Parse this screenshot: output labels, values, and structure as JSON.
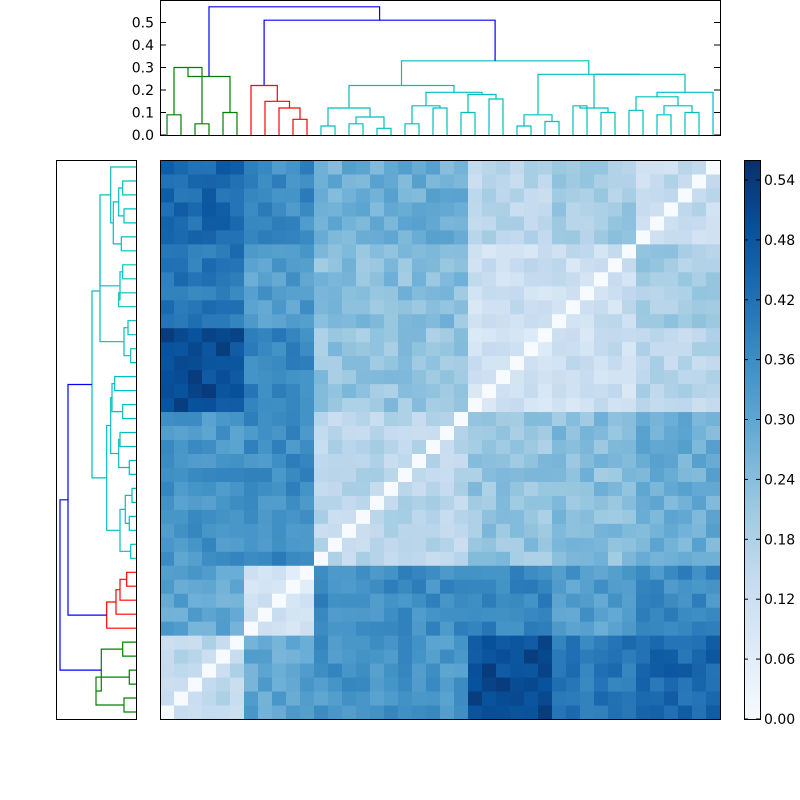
{
  "colors": {
    "cluster_root": "#0000ff",
    "cluster_a": "#008000",
    "cluster_b": "#ff0000",
    "cluster_c": "#00bfbf",
    "cmap_low": "#f7fbff",
    "cmap_high": "#08306b"
  },
  "chart_data": [
    {
      "type": "dendrogram",
      "orientation": "top",
      "ylim": [
        0,
        0.6
      ],
      "yticks": [
        "0.0",
        "0.1",
        "0.2",
        "0.3",
        "0.4",
        "0.5"
      ],
      "leaf_count": 40,
      "grid": false,
      "clusters": [
        {
          "name": "",
          "color": "#008000",
          "leaves": [
            0,
            1,
            2,
            3,
            4,
            5
          ]
        },
        {
          "name": "",
          "color": "#ff0000",
          "leaves": [
            6,
            7,
            8,
            9,
            10
          ]
        },
        {
          "name": "",
          "color": "#00bfbf",
          "leaves": [
            11,
            39
          ]
        }
      ],
      "merges": [
        {
          "left": 0,
          "right": 1,
          "height": 0.09,
          "color": "#008000"
        },
        {
          "left": 2,
          "right": 3,
          "height": 0.05,
          "color": "#008000"
        },
        {
          "left": 4,
          "right": 5,
          "height": 0.1,
          "color": "#008000"
        },
        {
          "left": 40,
          "right": 41,
          "height": 0.3,
          "color": "#008000"
        },
        {
          "left": 42,
          "right": 43,
          "height": 0.26,
          "color": "#008000"
        },
        {
          "left": 9,
          "right": 10,
          "height": 0.07,
          "color": "#ff0000"
        },
        {
          "left": 8,
          "right": 45,
          "height": 0.12,
          "color": "#ff0000"
        },
        {
          "left": 7,
          "right": 46,
          "height": 0.15,
          "color": "#ff0000"
        },
        {
          "left": 6,
          "right": 47,
          "height": 0.22,
          "color": "#ff0000"
        },
        {
          "left": 11,
          "right": 12,
          "height": 0.04,
          "color": "#00bfbf"
        },
        {
          "left": 13,
          "right": 14,
          "height": 0.05,
          "color": "#00bfbf"
        },
        {
          "left": 15,
          "right": 16,
          "height": 0.03,
          "color": "#00bfbf"
        },
        {
          "left": 50,
          "right": 51,
          "height": 0.08,
          "color": "#00bfbf"
        },
        {
          "left": 49,
          "right": 52,
          "height": 0.12,
          "color": "#00bfbf"
        },
        {
          "left": 17,
          "right": 18,
          "height": 0.05,
          "color": "#00bfbf"
        },
        {
          "left": 19,
          "right": 20,
          "height": 0.12,
          "color": "#00bfbf"
        },
        {
          "left": 54,
          "right": 55,
          "height": 0.13,
          "color": "#00bfbf"
        },
        {
          "left": 21,
          "right": 22,
          "height": 0.1,
          "color": "#00bfbf"
        },
        {
          "left": 23,
          "right": 24,
          "height": 0.16,
          "color": "#00bfbf"
        },
        {
          "left": 57,
          "right": 58,
          "height": 0.18,
          "color": "#00bfbf"
        },
        {
          "left": 56,
          "right": 59,
          "height": 0.19,
          "color": "#00bfbf"
        },
        {
          "left": 53,
          "right": 60,
          "height": 0.22,
          "color": "#00bfbf"
        },
        {
          "left": 25,
          "right": 26,
          "height": 0.04,
          "color": "#00bfbf"
        },
        {
          "left": 27,
          "right": 28,
          "height": 0.06,
          "color": "#00bfbf"
        },
        {
          "left": 62,
          "right": 63,
          "height": 0.09,
          "color": "#00bfbf"
        },
        {
          "left": 29,
          "right": 30,
          "height": 0.13,
          "color": "#00bfbf"
        },
        {
          "left": 31,
          "right": 32,
          "height": 0.1,
          "color": "#00bfbf"
        },
        {
          "left": 65,
          "right": 66,
          "height": 0.12,
          "color": "#00bfbf"
        },
        {
          "left": 33,
          "right": 34,
          "height": 0.11,
          "color": "#00bfbf"
        },
        {
          "left": 35,
          "right": 36,
          "height": 0.09,
          "color": "#00bfbf"
        },
        {
          "left": 37,
          "right": 38,
          "height": 0.1,
          "color": "#00bfbf"
        },
        {
          "left": 69,
          "right": 70,
          "height": 0.13,
          "color": "#00bfbf"
        },
        {
          "left": 68,
          "right": 71,
          "height": 0.17,
          "color": "#00bfbf"
        },
        {
          "left": 72,
          "right": 39,
          "height": 0.19,
          "color": "#00bfbf"
        },
        {
          "left": 67,
          "right": 73,
          "height": 0.27,
          "color": "#00bfbf"
        },
        {
          "left": 64,
          "right": 74,
          "height": 0.27,
          "color": "#00bfbf"
        },
        {
          "left": 61,
          "right": 75,
          "height": 0.33,
          "color": "#00bfbf"
        },
        {
          "left": 48,
          "right": 76,
          "height": 0.51,
          "color": "#0000ff"
        },
        {
          "left": 44,
          "right": 77,
          "height": 0.57,
          "color": "#0000ff"
        }
      ]
    },
    {
      "type": "dendrogram",
      "orientation": "left",
      "leaf_count": 40,
      "note_same_tree": "row dendrogram mirrors the column tree; root at bottom-left",
      "xticks": [],
      "yticks": []
    },
    {
      "type": "heatmap",
      "rows": 40,
      "cols": 40,
      "diagonal_value": 0.0,
      "zlim": [
        0.0,
        0.56
      ],
      "colormap": "Blues",
      "colorbar_ticks": [
        "0.00",
        "0.06",
        "0.12",
        "0.18",
        "0.24",
        "0.30",
        "0.36",
        "0.42",
        "0.48",
        "0.54"
      ],
      "block_means": [
        [
          0.16,
          0.3,
          0.34,
          0.5,
          0.4,
          0.44
        ],
        [
          0.3,
          0.1,
          0.36,
          0.38,
          0.32,
          0.36
        ],
        [
          0.34,
          0.36,
          0.16,
          0.22,
          0.24,
          0.28
        ],
        [
          0.5,
          0.38,
          0.22,
          0.1,
          0.12,
          0.16
        ],
        [
          0.4,
          0.32,
          0.24,
          0.12,
          0.12,
          0.2
        ],
        [
          0.44,
          0.36,
          0.28,
          0.16,
          0.2,
          0.14
        ]
      ],
      "block_bounds_leaf_index": [
        0,
        6,
        11,
        22,
        28,
        34,
        40
      ]
    }
  ]
}
